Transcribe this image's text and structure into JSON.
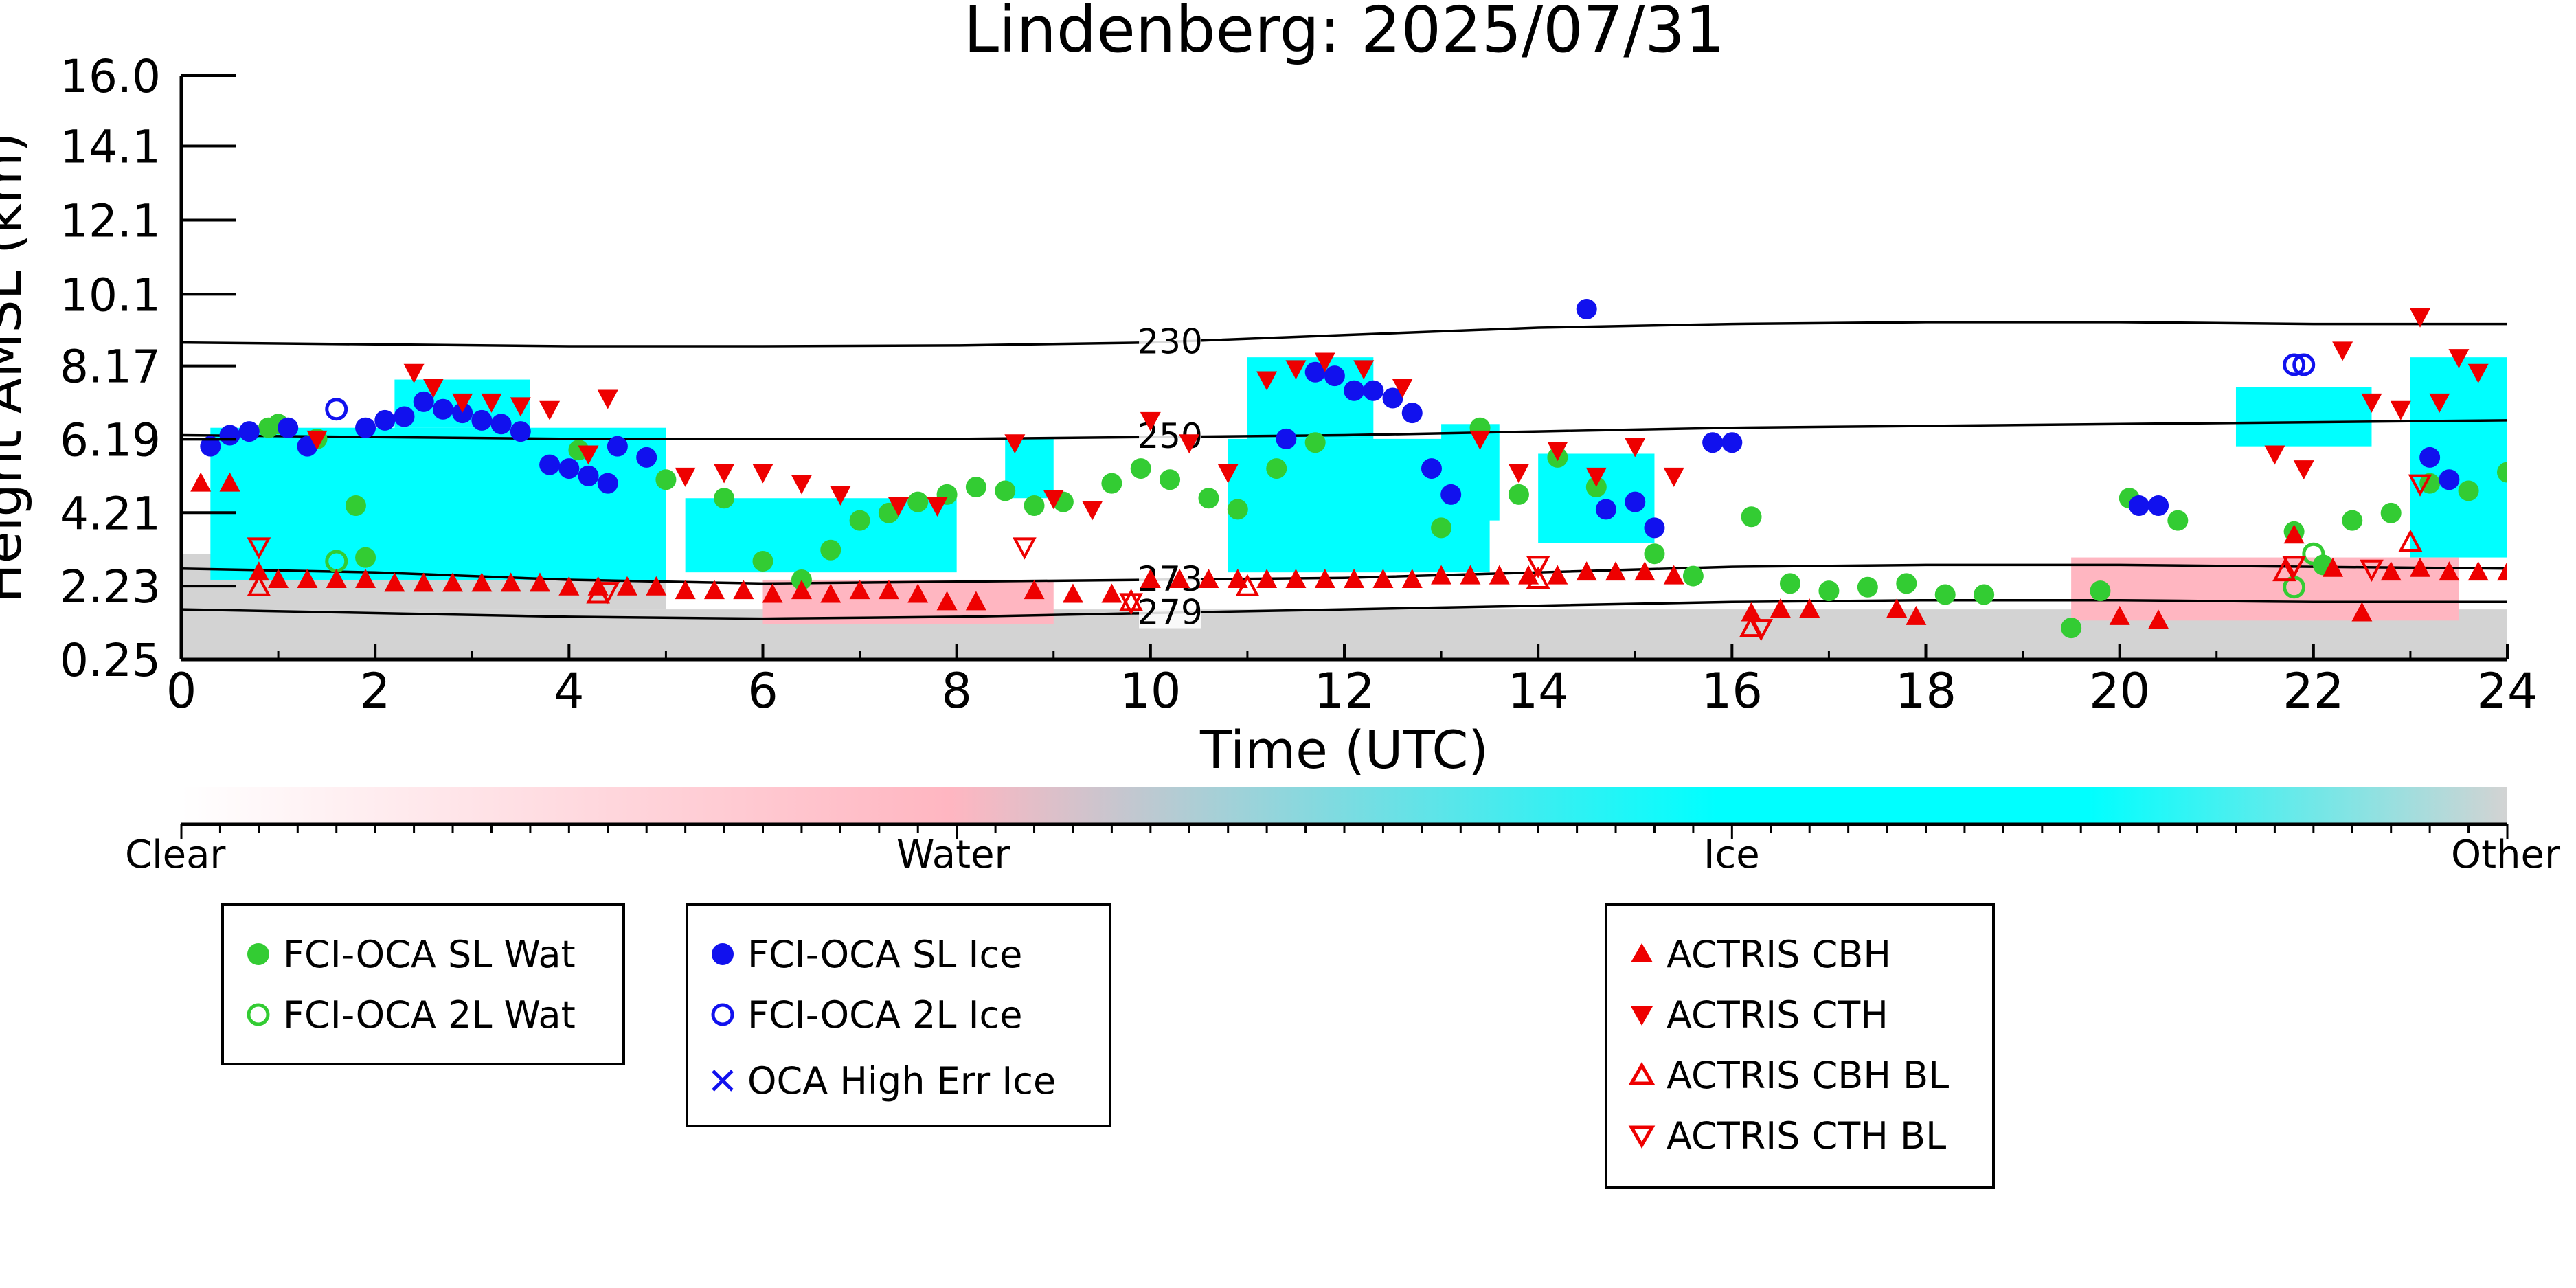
{
  "chart_data": {
    "type": "scatter",
    "title": "Lindenberg: 2025/07/31",
    "xlabel": "Time (UTC)",
    "ylabel": "Height AMSL (km)",
    "xlim": [
      0,
      24
    ],
    "ylim": [
      0.25,
      16.0
    ],
    "xticks": [
      0,
      2,
      4,
      6,
      8,
      10,
      12,
      14,
      16,
      18,
      20,
      22,
      24
    ],
    "yticks": [
      0.25,
      2.23,
      4.21,
      6.19,
      8.17,
      10.1,
      12.1,
      14.1,
      16.0
    ],
    "ytick_labels": [
      "0.25",
      "2.23",
      "4.21",
      "6.19",
      "8.17",
      "10.1",
      "12.1",
      "14.1",
      "16.0"
    ],
    "grid": false,
    "contours": [
      {
        "label": "230",
        "x": [
          0,
          2,
          4,
          6,
          8,
          10,
          12,
          14,
          16,
          18,
          20,
          22,
          24
        ],
        "y": [
          8.8,
          8.75,
          8.7,
          8.7,
          8.72,
          8.8,
          9.0,
          9.2,
          9.3,
          9.35,
          9.35,
          9.3,
          9.3
        ]
      },
      {
        "label": "250",
        "x": [
          0,
          2,
          4,
          6,
          8,
          10,
          12,
          14,
          16,
          18,
          20,
          22,
          24
        ],
        "y": [
          6.3,
          6.25,
          6.2,
          6.2,
          6.2,
          6.25,
          6.3,
          6.4,
          6.5,
          6.55,
          6.6,
          6.65,
          6.7
        ]
      },
      {
        "label": "273",
        "x": [
          0,
          2,
          4,
          6,
          8,
          10,
          12,
          14,
          16,
          18,
          20,
          22,
          24
        ],
        "y": [
          2.7,
          2.6,
          2.4,
          2.3,
          2.35,
          2.4,
          2.45,
          2.6,
          2.75,
          2.8,
          2.8,
          2.75,
          2.7
        ]
      },
      {
        "label": "279",
        "x": [
          0,
          2,
          4,
          6,
          8,
          10,
          12,
          14,
          16,
          18,
          20,
          22,
          24
        ],
        "y": [
          1.6,
          1.5,
          1.4,
          1.35,
          1.4,
          1.5,
          1.6,
          1.7,
          1.8,
          1.85,
          1.85,
          1.8,
          1.8
        ]
      }
    ],
    "series": [
      {
        "name": "FCI-OCA SL Wat",
        "marker": "filled-circle",
        "color": "#33cc33",
        "x": [
          0.9,
          1.0,
          1.4,
          1.8,
          1.9,
          4.1,
          5.0,
          5.6,
          6.0,
          6.4,
          6.7,
          7.0,
          7.3,
          7.6,
          7.9,
          8.2,
          8.5,
          8.8,
          9.1,
          9.6,
          9.9,
          10.2,
          10.6,
          10.9,
          11.3,
          11.7,
          13.0,
          13.4,
          13.8,
          14.2,
          14.6,
          15.2,
          15.6,
          16.2,
          16.6,
          17.0,
          17.4,
          17.8,
          18.2,
          18.6,
          19.5,
          19.8,
          20.1,
          20.6,
          21.8,
          22.1,
          22.4,
          22.8,
          23.2,
          23.6,
          24.0
        ],
        "y": [
          6.5,
          6.6,
          6.2,
          4.4,
          3.0,
          5.9,
          5.1,
          4.6,
          2.9,
          2.4,
          3.2,
          4.0,
          4.2,
          4.5,
          4.7,
          4.9,
          4.8,
          4.4,
          4.5,
          5.0,
          5.4,
          5.1,
          4.6,
          4.3,
          5.4,
          6.1,
          3.8,
          6.5,
          4.7,
          5.7,
          4.9,
          3.1,
          2.5,
          4.1,
          2.3,
          2.1,
          2.2,
          2.3,
          2.0,
          2.0,
          1.1,
          2.1,
          4.6,
          4.0,
          3.7,
          2.8,
          4.0,
          4.2,
          5.0,
          4.8,
          5.3
        ]
      },
      {
        "name": "FCI-OCA 2L Wat",
        "marker": "open-circle",
        "color": "#33cc33",
        "x": [
          1.6,
          21.8,
          22.0
        ],
        "y": [
          2.9,
          2.2,
          3.1
        ]
      },
      {
        "name": "FCI-OCA SL Ice",
        "marker": "filled-circle",
        "color": "#1111ee",
        "x": [
          0.3,
          0.5,
          0.7,
          1.1,
          1.3,
          1.9,
          2.1,
          2.3,
          2.5,
          2.7,
          2.9,
          3.1,
          3.3,
          3.5,
          3.8,
          4.0,
          4.2,
          4.4,
          4.5,
          4.8,
          11.4,
          11.7,
          11.9,
          12.1,
          12.3,
          12.5,
          12.7,
          12.9,
          13.1,
          14.5,
          14.7,
          15.0,
          15.2,
          15.8,
          16.0,
          20.2,
          20.4,
          23.2,
          23.4
        ],
        "y": [
          6.0,
          6.3,
          6.4,
          6.5,
          6.0,
          6.5,
          6.7,
          6.8,
          7.2,
          7.0,
          6.9,
          6.7,
          6.6,
          6.4,
          5.5,
          5.4,
          5.2,
          5.0,
          6.0,
          5.7,
          6.2,
          8.0,
          7.9,
          7.5,
          7.5,
          7.3,
          6.9,
          5.4,
          4.7,
          9.7,
          4.3,
          4.5,
          3.8,
          6.1,
          6.1,
          4.4,
          4.4,
          5.7,
          5.1
        ]
      },
      {
        "name": "FCI-OCA 2L Ice",
        "marker": "open-circle",
        "color": "#1111ee",
        "x": [
          1.6,
          21.8,
          21.9
        ],
        "y": [
          7.0,
          8.2,
          8.2
        ]
      },
      {
        "name": "OCA High Err Ice",
        "marker": "x",
        "color": "#1111ee",
        "x": [],
        "y": []
      },
      {
        "name": "ACTRIS CBH",
        "marker": "filled-triangle-up",
        "color": "#ee0000",
        "x": [
          0.2,
          0.5,
          0.8,
          1.0,
          1.3,
          1.6,
          1.9,
          2.2,
          2.5,
          2.8,
          3.1,
          3.4,
          3.7,
          4.0,
          4.3,
          4.6,
          4.9,
          5.2,
          5.5,
          5.8,
          6.1,
          6.4,
          6.7,
          7.0,
          7.3,
          7.6,
          7.9,
          8.2,
          8.8,
          9.2,
          9.6,
          10.0,
          10.3,
          10.6,
          10.9,
          11.2,
          11.5,
          11.8,
          12.1,
          12.4,
          12.7,
          13.0,
          13.3,
          13.6,
          13.9,
          14.2,
          14.5,
          14.8,
          15.1,
          15.4,
          16.2,
          16.5,
          16.8,
          17.7,
          17.9,
          20.0,
          20.4,
          21.8,
          22.2,
          22.5,
          22.8,
          23.1,
          23.4,
          23.7,
          24.0
        ],
        "y": [
          5.0,
          5.0,
          2.6,
          2.4,
          2.4,
          2.4,
          2.4,
          2.3,
          2.3,
          2.3,
          2.3,
          2.3,
          2.3,
          2.2,
          2.2,
          2.2,
          2.2,
          2.1,
          2.1,
          2.1,
          2.0,
          2.1,
          2.0,
          2.1,
          2.1,
          2.0,
          1.8,
          1.8,
          2.1,
          2.0,
          2.0,
          2.4,
          2.4,
          2.4,
          2.4,
          2.4,
          2.4,
          2.4,
          2.4,
          2.4,
          2.4,
          2.5,
          2.5,
          2.5,
          2.5,
          2.5,
          2.6,
          2.6,
          2.6,
          2.5,
          1.5,
          1.6,
          1.6,
          1.6,
          1.4,
          1.4,
          1.3,
          3.6,
          2.7,
          1.5,
          2.6,
          2.7,
          2.6,
          2.6,
          2.6
        ]
      },
      {
        "name": "ACTRIS CTH",
        "marker": "filled-triangle-down",
        "color": "#ee0000",
        "x": [
          1.4,
          2.4,
          2.6,
          2.9,
          3.2,
          3.5,
          3.8,
          4.2,
          4.4,
          5.2,
          5.6,
          6.0,
          6.4,
          6.8,
          7.4,
          7.8,
          8.6,
          9.0,
          9.4,
          10.0,
          10.4,
          10.8,
          11.2,
          11.5,
          11.8,
          12.2,
          12.6,
          13.4,
          13.8,
          14.2,
          14.6,
          15.0,
          15.4,
          21.6,
          21.9,
          22.3,
          22.6,
          22.9,
          23.1,
          23.3,
          23.5,
          23.7
        ],
        "y": [
          6.2,
          8.0,
          7.6,
          7.2,
          7.2,
          7.1,
          7.0,
          5.8,
          7.3,
          5.2,
          5.3,
          5.3,
          5.0,
          4.7,
          4.4,
          4.4,
          6.1,
          4.6,
          4.3,
          6.7,
          6.1,
          5.3,
          7.8,
          8.1,
          8.3,
          8.1,
          7.6,
          6.2,
          5.3,
          5.9,
          5.2,
          6.0,
          5.2,
          5.8,
          5.4,
          8.6,
          7.2,
          7.0,
          9.5,
          7.2,
          8.4,
          8.0
        ]
      },
      {
        "name": "ACTRIS CBH BL",
        "marker": "open-triangle-up",
        "color": "#ee0000",
        "x": [
          0.8,
          4.3,
          9.8,
          11.0,
          14.0,
          16.2,
          21.7,
          23.0
        ],
        "y": [
          2.2,
          2.0,
          1.8,
          2.2,
          2.4,
          1.1,
          2.6,
          3.4
        ]
      },
      {
        "name": "ACTRIS CTH BL",
        "marker": "open-triangle-down",
        "color": "#ee0000",
        "x": [
          0.8,
          4.4,
          8.7,
          9.8,
          14.0,
          16.3,
          21.8,
          22.6,
          23.1
        ],
        "y": [
          3.3,
          2.1,
          3.3,
          1.8,
          2.8,
          1.1,
          2.8,
          2.7,
          5.0
        ]
      }
    ],
    "colorbar": {
      "labels": [
        "Clear",
        "Water",
        "Ice",
        "Other"
      ],
      "colors": [
        "#ffffff",
        "#ffb6c1",
        "#00ffff",
        "#d3d3d3"
      ]
    },
    "legend": {
      "groups": [
        [
          "FCI-OCA SL Wat",
          "FCI-OCA 2L Wat"
        ],
        [
          "FCI-OCA SL Ice",
          "FCI-OCA 2L Ice",
          "OCA High Err Ice"
        ],
        [
          "ACTRIS CBH",
          "ACTRIS CTH",
          "ACTRIS CBH BL",
          "ACTRIS CTH BL"
        ]
      ],
      "placement": "bottom"
    },
    "colors": {
      "water": "#33cc33",
      "ice": "#1111ee",
      "actris": "#ee0000",
      "ice_cloud": "#00ffff",
      "other_cloud": "#d3d3d3",
      "water_cloud": "#ffb6c1"
    }
  }
}
